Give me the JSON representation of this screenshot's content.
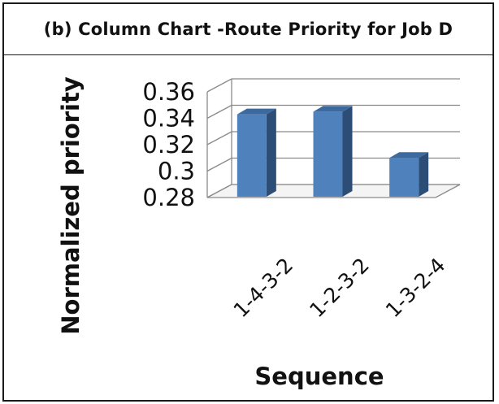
{
  "title": "(b) Column Chart -Route Priority for Job D",
  "chart_data": {
    "type": "bar",
    "title": "(b) Column Chart -Route Priority for Job D",
    "xlabel": "Sequence",
    "ylabel": "Normalized priority",
    "categories": [
      "1-4-3-2",
      "1-2-3-2",
      "1-3-2-4"
    ],
    "values": [
      0.343,
      0.345,
      0.31
    ],
    "ylim": [
      0.28,
      0.36
    ],
    "yticks": [
      "0.28",
      "0.3",
      "0.32",
      "0.34",
      "0.36"
    ],
    "grid": true,
    "three_d": true,
    "bar_color": "#4f81bd"
  }
}
